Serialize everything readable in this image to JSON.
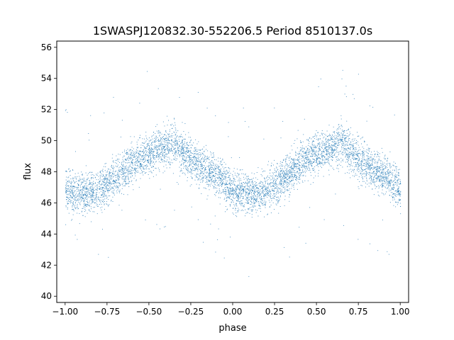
{
  "chart_data": {
    "type": "scatter",
    "title": "1SWASPJ120832.30-552206.5 Period 8510137.0s",
    "xlabel": "phase",
    "ylabel": "flux",
    "xlim": [
      -1.05,
      1.05
    ],
    "ylim": [
      39.6,
      56.4
    ],
    "x_ticks": [
      -1.0,
      -0.75,
      -0.5,
      -0.25,
      0.0,
      0.25,
      0.5,
      0.75,
      1.0
    ],
    "x_tick_labels": [
      "−1.00",
      "−0.75",
      "−0.50",
      "−0.25",
      "0.00",
      "0.25",
      "0.50",
      "0.75",
      "1.00"
    ],
    "y_ticks": [
      40,
      42,
      44,
      46,
      48,
      50,
      52,
      54,
      56
    ],
    "y_tick_labels": [
      "40",
      "42",
      "44",
      "46",
      "48",
      "50",
      "52",
      "54",
      "56"
    ],
    "grid": false,
    "legend": "none",
    "marker_color": "#1f77b4",
    "series": [
      {
        "name": "",
        "x": [
          -1.0,
          -0.9,
          -0.8,
          -0.7,
          -0.6,
          -0.5,
          -0.4,
          -0.35,
          -0.3,
          -0.2,
          -0.1,
          0.0,
          0.1,
          0.2,
          0.3,
          0.4,
          0.5,
          0.6,
          0.65,
          0.7,
          0.8,
          0.9,
          1.0
        ],
        "y": [
          46.9,
          46.6,
          46.8,
          47.6,
          48.6,
          49.2,
          49.7,
          49.9,
          49.3,
          48.4,
          47.8,
          46.8,
          46.6,
          46.8,
          47.6,
          48.6,
          49.2,
          49.7,
          49.9,
          49.3,
          48.4,
          47.8,
          46.9
        ]
      }
    ]
  }
}
